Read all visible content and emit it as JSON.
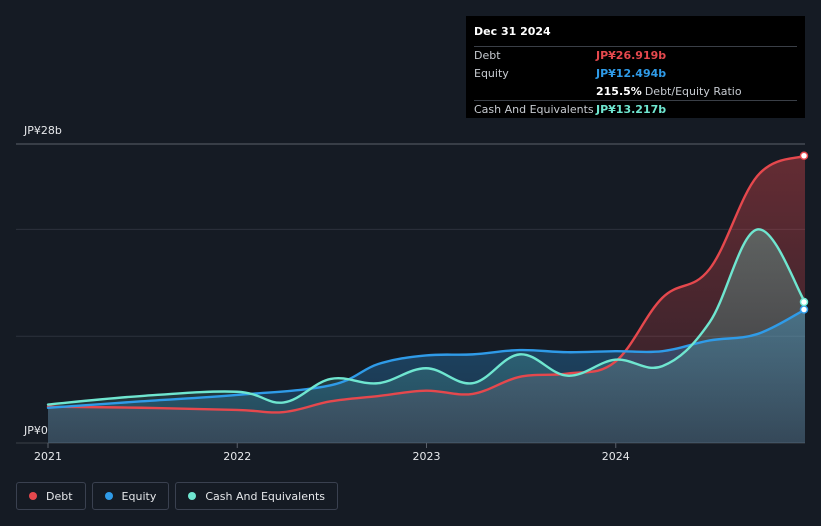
{
  "tooltip": {
    "date": "Dec 31 2024",
    "rows": [
      {
        "label": "Debt",
        "value": "JP¥26.919b",
        "color": "#e5484d"
      },
      {
        "label": "Equity",
        "value": "JP¥12.494b",
        "color": "#2f9be8"
      },
      {
        "label": "",
        "value": "215.5%",
        "unit": "Debt/Equity Ratio",
        "color": "#ffffff"
      },
      {
        "label": "Cash And Equivalents",
        "value": "JP¥13.217b",
        "color": "#6fe6d0"
      }
    ]
  },
  "y_axis": {
    "top_label": "JP¥28b",
    "bottom_label": "JP¥0"
  },
  "legend": [
    {
      "label": "Debt",
      "color": "#e5484d"
    },
    {
      "label": "Equity",
      "color": "#2f9be8"
    },
    {
      "label": "Cash And Equivalents",
      "color": "#6fe6d0"
    }
  ],
  "chart_data": {
    "type": "area",
    "units": "JP¥ billions",
    "ylim": [
      0,
      28
    ],
    "x_ticks": [
      "2021",
      "2022",
      "2023",
      "2024"
    ],
    "x_range": [
      "2021-01-01",
      "2024-12-31"
    ],
    "grid": true,
    "series": [
      {
        "name": "Debt",
        "color": "#e5484d",
        "points": [
          [
            "2021-01-01",
            3.4
          ],
          [
            "2021-06-30",
            3.3
          ],
          [
            "2021-12-31",
            3.1
          ],
          [
            "2022-04-01",
            2.9
          ],
          [
            "2022-06-30",
            3.9
          ],
          [
            "2022-09-30",
            4.4
          ],
          [
            "2022-12-31",
            4.9
          ],
          [
            "2023-03-31",
            4.6
          ],
          [
            "2023-06-30",
            6.2
          ],
          [
            "2023-09-30",
            6.5
          ],
          [
            "2023-12-31",
            7.6
          ],
          [
            "2024-03-31",
            13.6
          ],
          [
            "2024-06-30",
            16.3
          ],
          [
            "2024-09-30",
            25.0
          ],
          [
            "2024-12-31",
            26.9
          ]
        ]
      },
      {
        "name": "Equity",
        "color": "#2f9be8",
        "points": [
          [
            "2021-01-01",
            3.3
          ],
          [
            "2021-06-30",
            3.9
          ],
          [
            "2021-12-31",
            4.5
          ],
          [
            "2022-06-30",
            5.4
          ],
          [
            "2022-09-30",
            7.4
          ],
          [
            "2022-12-31",
            8.2
          ],
          [
            "2023-03-31",
            8.3
          ],
          [
            "2023-06-30",
            8.7
          ],
          [
            "2023-09-30",
            8.5
          ],
          [
            "2023-12-31",
            8.6
          ],
          [
            "2024-03-31",
            8.6
          ],
          [
            "2024-06-30",
            9.6
          ],
          [
            "2024-09-30",
            10.2
          ],
          [
            "2024-12-31",
            12.5
          ]
        ]
      },
      {
        "name": "Cash And Equivalents",
        "color": "#6fe6d0",
        "points": [
          [
            "2021-01-01",
            3.6
          ],
          [
            "2021-06-30",
            4.4
          ],
          [
            "2021-12-31",
            4.8
          ],
          [
            "2022-04-01",
            3.8
          ],
          [
            "2022-06-30",
            6.0
          ],
          [
            "2022-09-30",
            5.6
          ],
          [
            "2022-12-31",
            7.0
          ],
          [
            "2023-03-31",
            5.6
          ],
          [
            "2023-06-30",
            8.3
          ],
          [
            "2023-09-30",
            6.3
          ],
          [
            "2023-12-31",
            7.8
          ],
          [
            "2024-03-31",
            7.2
          ],
          [
            "2024-06-30",
            11.3
          ],
          [
            "2024-09-30",
            20.0
          ],
          [
            "2024-12-31",
            13.2
          ]
        ]
      }
    ]
  }
}
